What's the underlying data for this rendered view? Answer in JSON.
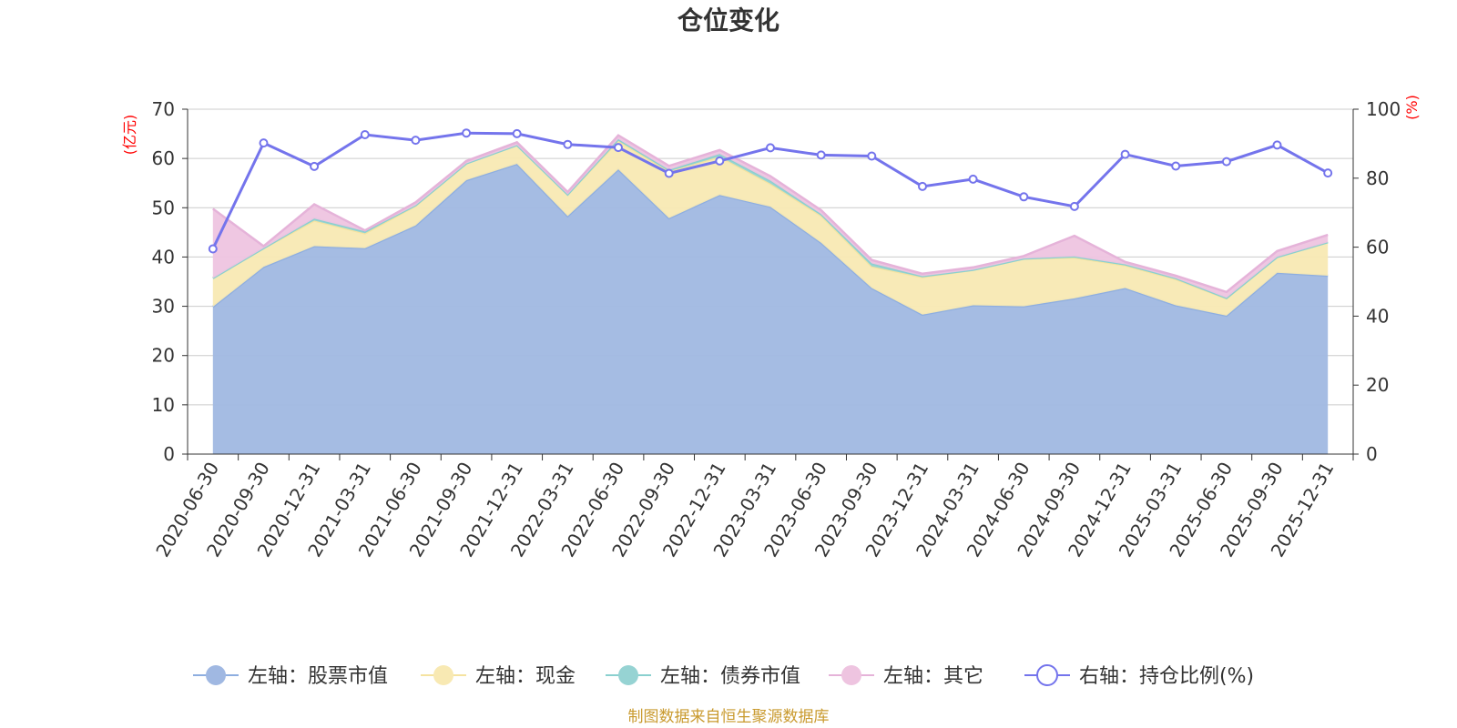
{
  "chart_data": {
    "type": "area",
    "title": "仓位变化",
    "left_unit": "(亿元)",
    "right_unit": "(%)",
    "x": [
      "2020-06-30",
      "2020-09-30",
      "2020-12-31",
      "2021-03-31",
      "2021-06-30",
      "2021-09-30",
      "2021-12-31",
      "2022-03-31",
      "2022-06-30",
      "2022-09-30",
      "2022-12-31",
      "2023-03-31",
      "2023-06-30",
      "2023-09-30",
      "2023-12-31",
      "2024-03-31",
      "2024-06-30",
      "2024-09-30",
      "2024-12-31",
      "2025-03-31",
      "2025-06-30",
      "2025-09-30",
      "2025-12-31"
    ],
    "ylim_left": [
      0,
      70
    ],
    "yticks_left": [
      0,
      10,
      20,
      30,
      40,
      50,
      60,
      70
    ],
    "ylim_right": [
      0,
      100
    ],
    "yticks_right": [
      0,
      20,
      40,
      60,
      80,
      100
    ],
    "stacked_series": [
      {
        "name": "左轴：股票市值",
        "color": "#a0b8e2",
        "line": "#8eaee0",
        "values": [
          29.9,
          38.0,
          42.2,
          41.8,
          46.4,
          55.6,
          58.9,
          48.3,
          57.8,
          47.9,
          52.6,
          50.2,
          42.9,
          33.7,
          28.3,
          30.2,
          30.0,
          31.6,
          33.7,
          30.2,
          28.1,
          36.8,
          36.2
        ]
      },
      {
        "name": "左轴：现金",
        "color": "#f8e9b3",
        "line": "#f5e3a0",
        "values": [
          5.8,
          3.8,
          5.2,
          3.0,
          4.0,
          3.4,
          3.8,
          4.4,
          5.8,
          9.5,
          7.8,
          4.7,
          5.5,
          4.4,
          7.6,
          7.2,
          9.7,
          8.3,
          4.6,
          5.3,
          3.5,
          3.2,
          6.8
        ]
      },
      {
        "name": "左轴：债券市值",
        "color": "#96d3d3",
        "line": "#8ad0cf",
        "values": [
          0.0,
          0.0,
          0.4,
          0.4,
          0.1,
          0.0,
          0.0,
          0.0,
          0.3,
          0.3,
          0.5,
          0.6,
          0.3,
          0.6,
          0.2,
          0.0,
          0.0,
          0.2,
          0.2,
          0.2,
          0.1,
          0.0,
          0.0
        ]
      },
      {
        "name": "左轴：其它",
        "color": "#eec4e0",
        "line": "#e5b3d9",
        "values": [
          14.1,
          0.4,
          2.9,
          0.2,
          0.6,
          0.5,
          0.6,
          0.5,
          0.8,
          0.8,
          0.8,
          0.9,
          0.8,
          0.7,
          0.5,
          0.5,
          0.5,
          4.2,
          0.5,
          0.5,
          1.2,
          1.2,
          1.5
        ]
      }
    ],
    "line_series": {
      "name": "右轴：持仓比例(%)",
      "color": "#7474ec",
      "values": [
        59.5,
        90.2,
        83.4,
        92.6,
        91.0,
        93.1,
        92.9,
        89.8,
        88.9,
        81.4,
        85.0,
        88.8,
        86.7,
        86.4,
        77.6,
        79.7,
        74.6,
        71.8,
        86.9,
        83.5,
        84.8,
        89.6,
        81.5
      ]
    },
    "source": "制图数据来自恒生聚源数据库",
    "colors": {
      "grid": "#cccccc",
      "axis": "#333333",
      "unit": "#ff0000",
      "source": "#c99a2e"
    }
  }
}
